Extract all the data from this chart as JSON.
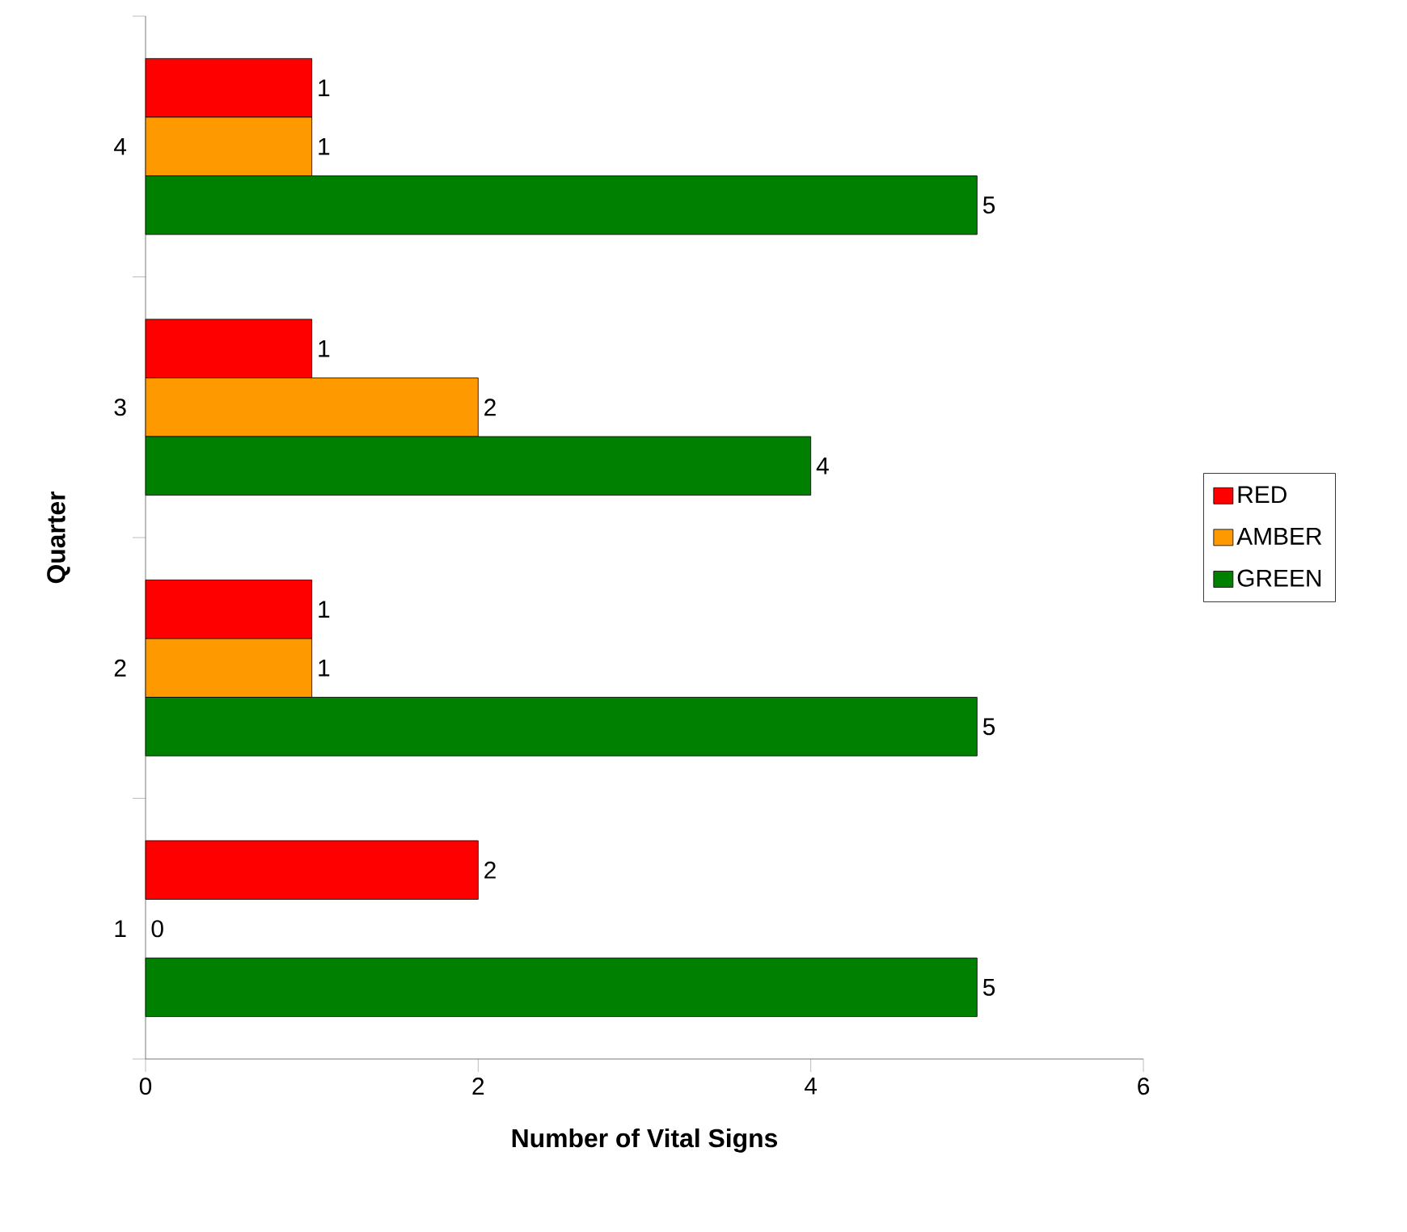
{
  "chart_data": {
    "type": "bar",
    "orientation": "horizontal",
    "ylabel": "Quarter",
    "xlabel": "Number of Vital Signs",
    "categories": [
      "4",
      "3",
      "2",
      "1"
    ],
    "series": [
      {
        "name": "RED",
        "color": "#ff0000",
        "values": [
          1,
          1,
          1,
          2
        ]
      },
      {
        "name": "AMBER",
        "color": "#ff9900",
        "values": [
          1,
          2,
          1,
          0
        ]
      },
      {
        "name": "GREEN",
        "color": "#008000",
        "values": [
          5,
          4,
          5,
          5
        ]
      }
    ],
    "xlim": [
      0,
      6
    ],
    "xticks": [
      0,
      2,
      4,
      6
    ],
    "data_labels": true,
    "legend": "right"
  }
}
